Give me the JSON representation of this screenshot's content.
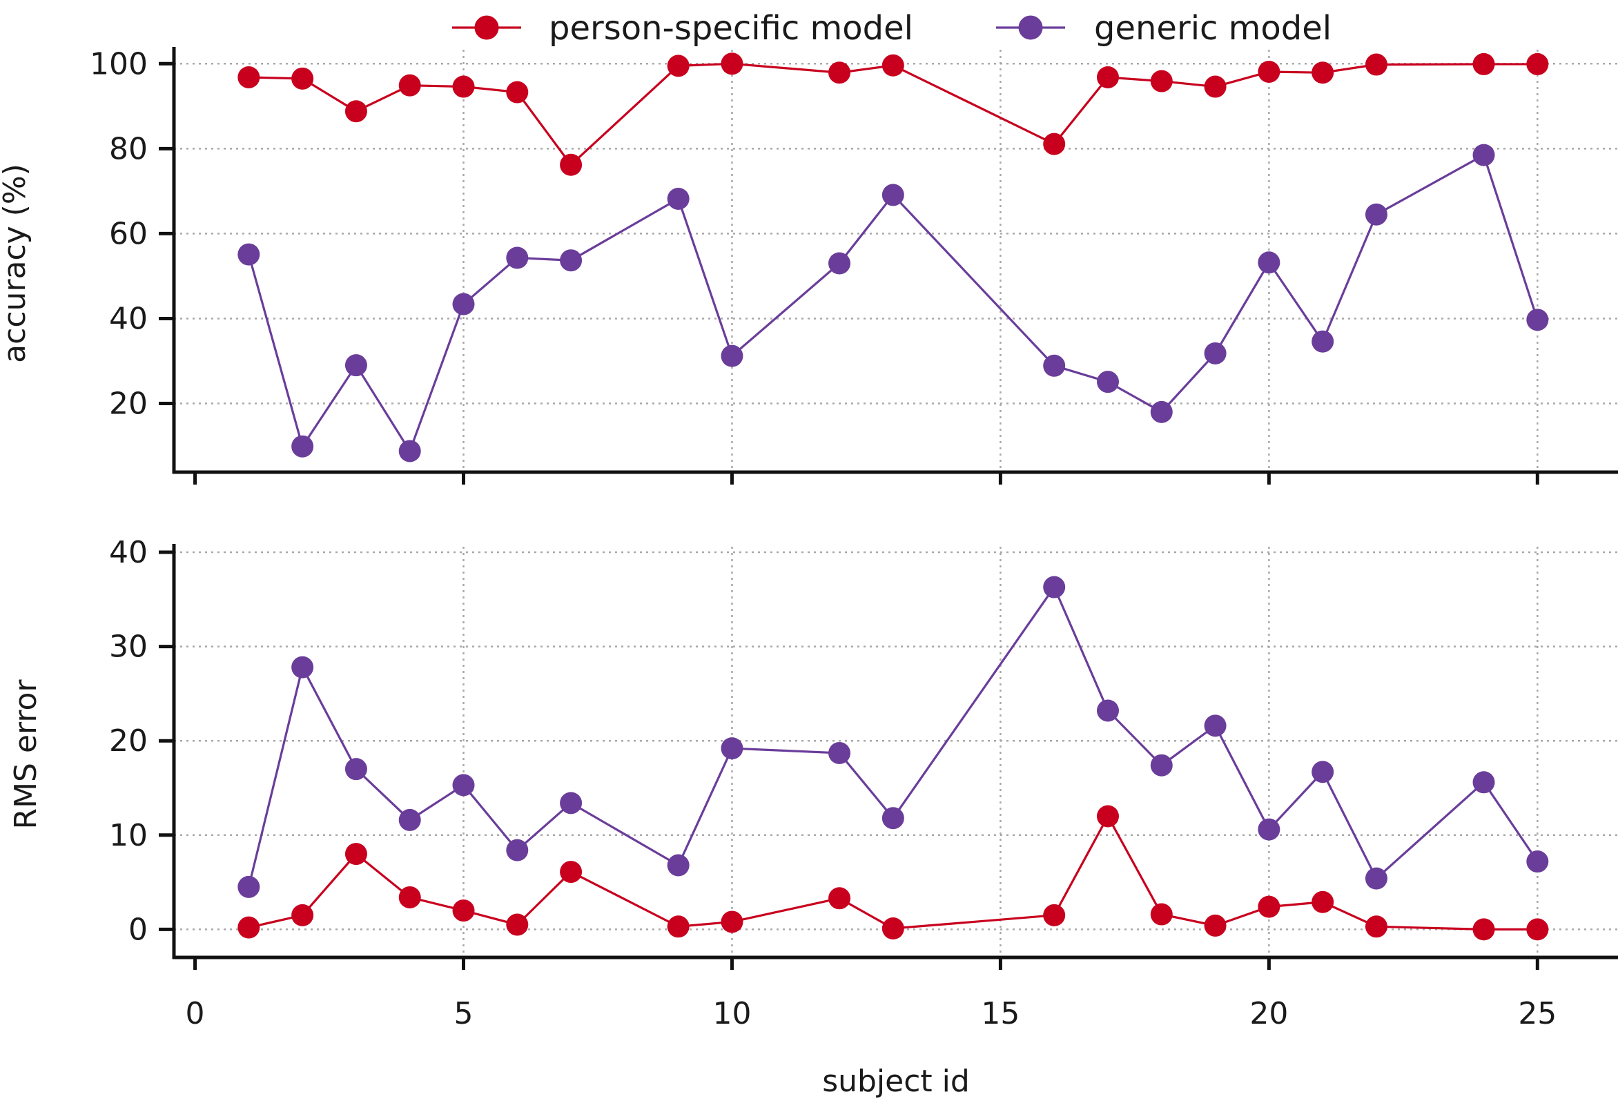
{
  "colors": {
    "person_specific": "#c8001e",
    "generic": "#6a3d9a"
  },
  "legend": [
    {
      "name": "person-specific model",
      "color_key": "person_specific"
    },
    {
      "name": "generic model",
      "color_key": "generic"
    }
  ],
  "xlabel": "subject id",
  "chart_data": [
    {
      "type": "line",
      "panel": "top",
      "title": "",
      "xlabel": "",
      "ylabel": "accuracy (%)",
      "xlim": [
        -0.2,
        26.5
      ],
      "ylim": [
        4,
        102
      ],
      "xticks": [
        0,
        5,
        10,
        15,
        20,
        25
      ],
      "yticks": [
        20,
        40,
        60,
        80,
        100
      ],
      "grid": true,
      "legend_position": "top-center",
      "x": [
        1,
        2,
        3,
        4,
        5,
        6,
        7,
        9,
        10,
        12,
        13,
        16,
        17,
        18,
        19,
        20,
        21,
        22,
        24,
        25
      ],
      "series": [
        {
          "name": "person-specific model",
          "color_key": "person_specific",
          "values": [
            96.8,
            96.5,
            88.8,
            94.9,
            94.6,
            93.3,
            76.2,
            99.5,
            100,
            97.9,
            99.6,
            81.1,
            96.8,
            95.9,
            94.6,
            98.1,
            97.9,
            99.8,
            99.9,
            99.9
          ]
        },
        {
          "name": "generic model",
          "color_key": "generic",
          "values": [
            55.1,
            9.9,
            29.0,
            8.8,
            43.4,
            54.3,
            53.7,
            68.2,
            31.2,
            53.0,
            69.1,
            28.9,
            25.1,
            18.0,
            31.8,
            53.2,
            34.6,
            64.5,
            78.5,
            39.7
          ]
        }
      ]
    },
    {
      "type": "line",
      "panel": "bottom",
      "title": "",
      "xlabel": "subject id",
      "ylabel": "RMS error",
      "xlim": [
        -0.2,
        26.5
      ],
      "ylim": [
        -2.9,
        40
      ],
      "xticks": [
        0,
        5,
        10,
        15,
        20,
        25
      ],
      "yticks": [
        0,
        10,
        20,
        30,
        40
      ],
      "grid": true,
      "x": [
        1,
        2,
        3,
        4,
        5,
        6,
        7,
        9,
        10,
        12,
        13,
        16,
        17,
        18,
        19,
        20,
        21,
        22,
        24,
        25
      ],
      "series": [
        {
          "name": "person-specific model",
          "color_key": "person_specific",
          "values": [
            0.2,
            1.5,
            8.0,
            3.4,
            2.0,
            0.5,
            6.1,
            0.3,
            0.8,
            3.3,
            0.1,
            1.5,
            12.0,
            1.6,
            0.4,
            2.4,
            2.9,
            0.3,
            0.0,
            0.0
          ]
        },
        {
          "name": "generic model",
          "color_key": "generic",
          "values": [
            4.5,
            27.8,
            17.0,
            11.6,
            15.3,
            8.4,
            13.4,
            6.8,
            19.2,
            18.7,
            11.8,
            36.3,
            23.2,
            17.4,
            21.6,
            10.6,
            16.7,
            5.4,
            15.6,
            7.2
          ]
        }
      ]
    }
  ]
}
